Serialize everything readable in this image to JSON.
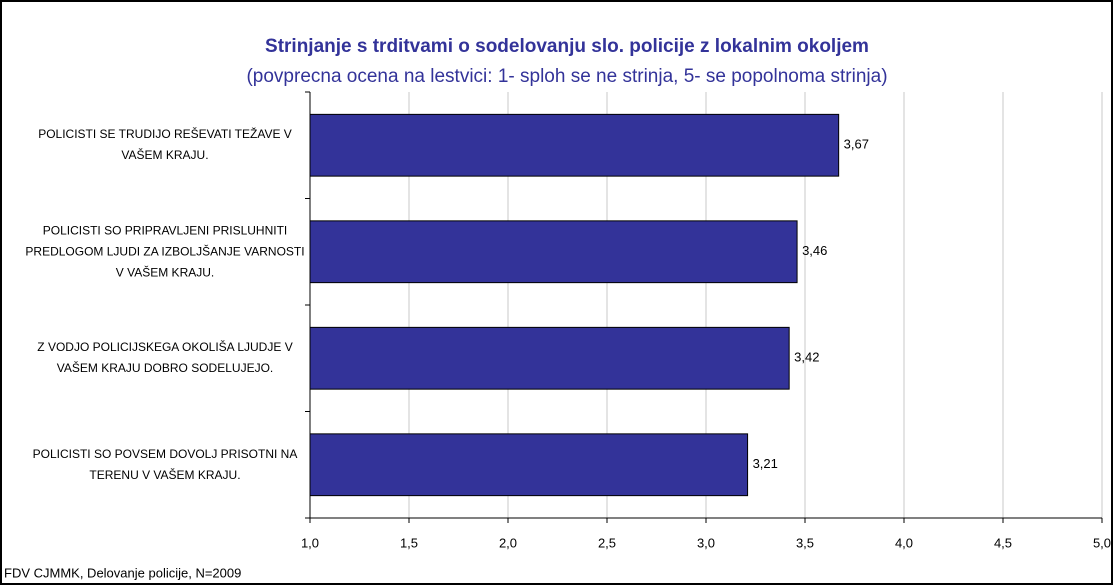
{
  "chart_data": {
    "type": "bar",
    "orientation": "horizontal",
    "title": "Strinjanje s trditvami o sodelovanju slo. policije z lokalnim okoljem",
    "subtitle": "(povprecna ocena na lestvici: 1- sploh se ne strinja, 5- se popolnoma strinja)",
    "footnote": "FDV CJMMK, Delovanje policije, N=2009",
    "categories": [
      "POLICISTI SE TRUDIJO REŠEVATI TEŽAVE V VAŠEM KRAJU.",
      "POLICISTI SO PRIPRAVLJENI PRISLUHNITI PREDLOGOM LJUDI ZA IZBOLJŠANJE VARNOSTI V VAŠEM KRAJU.",
      "Z VODJO POLICIJSKEGA OKOLIŠA LJUDJE V VAŠEM KRAJU DOBRO SODELUJEJO.",
      "POLICISTI SO POVSEM DOVOLJ PRISOTNI NA TERENU V VAŠEM KRAJU."
    ],
    "values": [
      3.67,
      3.46,
      3.42,
      3.21
    ],
    "value_labels": [
      "3,67",
      "3,46",
      "3,42",
      "3,21"
    ],
    "color": "#333399",
    "xlim": [
      1,
      5
    ],
    "xticks": [
      {
        "value": 1,
        "label": "1,0"
      },
      {
        "value": 1.5,
        "label": "1,5"
      },
      {
        "value": 2,
        "label": "2,0"
      },
      {
        "value": 2.5,
        "label": "2,5"
      },
      {
        "value": 3,
        "label": "3,0"
      },
      {
        "value": 3.5,
        "label": "3,5"
      },
      {
        "value": 4,
        "label": "4,0"
      },
      {
        "value": 4.5,
        "label": "4,5"
      },
      {
        "value": 5,
        "label": "5,0"
      }
    ],
    "grid": true
  }
}
